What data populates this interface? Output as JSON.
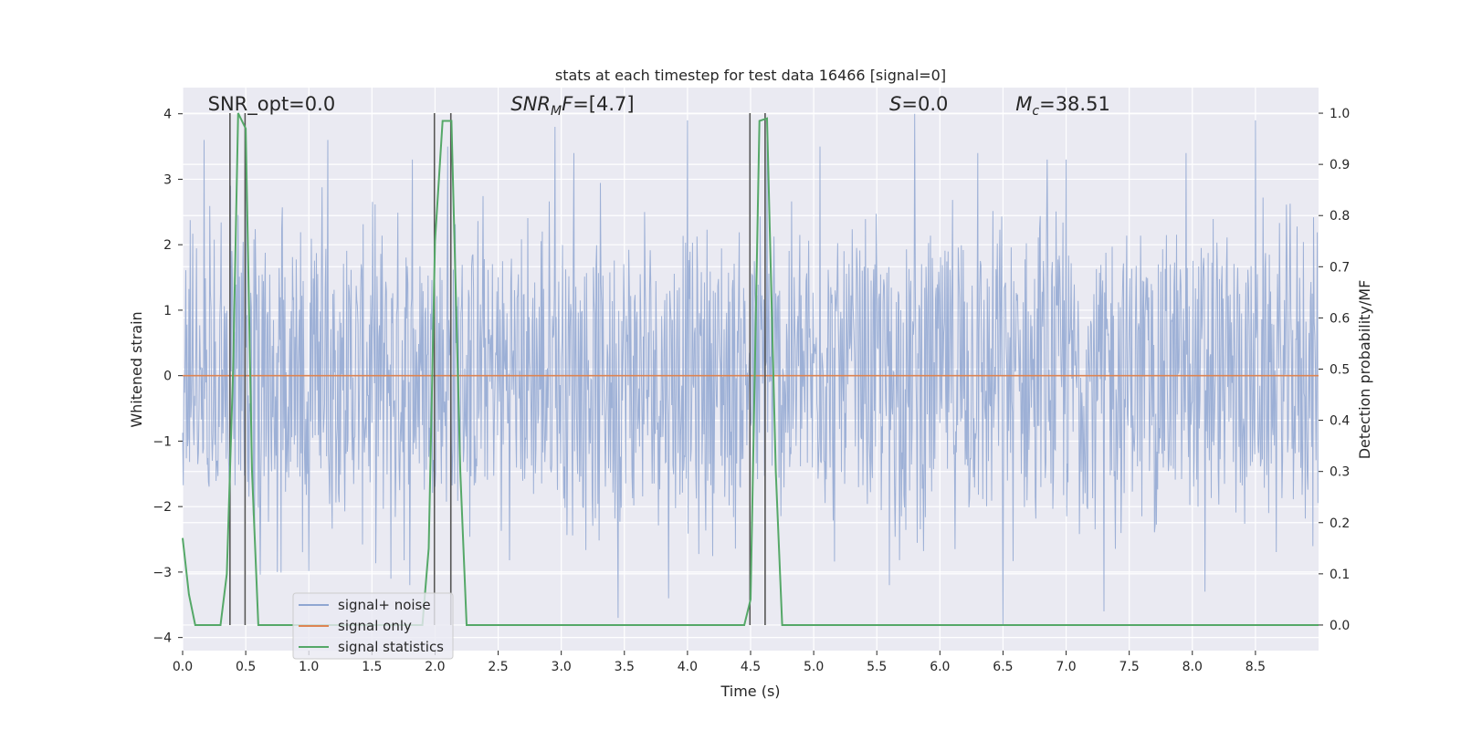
{
  "chart_data": {
    "type": "line",
    "title": "stats at each timestep for test data 16466 [signal=0]",
    "xlabel": "Time (s)",
    "ylabel": "Whitened strain",
    "y2label": "Detection probability/MF",
    "xlim": [
      0.0,
      9.0
    ],
    "ylim": [
      -4.2,
      4.4
    ],
    "y2lim": [
      -0.05,
      1.05
    ],
    "xticks": [
      0.0,
      0.5,
      1.0,
      1.5,
      2.0,
      2.5,
      3.0,
      3.5,
      4.0,
      4.5,
      5.0,
      5.5,
      6.0,
      6.5,
      7.0,
      7.5,
      8.0,
      8.5
    ],
    "yticks": [
      -4,
      -3,
      -2,
      -1,
      0,
      1,
      2,
      3,
      4
    ],
    "y2ticks": [
      0.0,
      0.1,
      0.2,
      0.3,
      0.4,
      0.5,
      0.6,
      0.7,
      0.8,
      0.9,
      1.0
    ],
    "grid": true,
    "legend_position": "lower-left",
    "annotations": [
      {
        "text": "SNR_opt=0.0",
        "x": 0.2,
        "y": 4.05
      },
      {
        "text": "SNR_MF=[4.7]",
        "x": 2.6,
        "y": 4.05
      },
      {
        "text": "S=0.0",
        "x": 5.6,
        "y": 4.05
      },
      {
        "text": "M_c=38.51",
        "x": 6.6,
        "y": 4.05
      }
    ],
    "series": [
      {
        "name": "signal+ noise",
        "axis": "left",
        "color": "#8fa6d1",
        "description": "dense whitened noise, amplitude roughly within -3.8 to 4.0",
        "peaks": [
          [
            0.17,
            3.6
          ],
          [
            0.38,
            2.9
          ],
          [
            0.5,
            3.1
          ],
          [
            1.15,
            3.6
          ],
          [
            1.82,
            3.3
          ],
          [
            2.1,
            3.5
          ],
          [
            2.95,
            3.8
          ],
          [
            4.0,
            3.9
          ],
          [
            4.63,
            3.6
          ],
          [
            5.05,
            3.5
          ],
          [
            5.8,
            4.0
          ],
          [
            6.3,
            3.4
          ],
          [
            7.0,
            3.3
          ],
          [
            7.3,
            3.8
          ],
          [
            7.95,
            3.4
          ],
          [
            8.5,
            3.9
          ],
          [
            3.1,
            3.4
          ],
          [
            6.85,
            3.3
          ]
        ],
        "troughs": [
          [
            1.65,
            -3.1
          ],
          [
            1.8,
            -3.2
          ],
          [
            3.45,
            -3.7
          ],
          [
            3.85,
            -3.4
          ],
          [
            6.5,
            -3.8
          ],
          [
            7.3,
            -3.6
          ],
          [
            8.1,
            -3.3
          ],
          [
            0.75,
            -3.0
          ],
          [
            5.6,
            -3.2
          ]
        ]
      },
      {
        "name": "signal only",
        "axis": "left",
        "color": "#dd8452",
        "x": [
          0.0,
          9.0
        ],
        "y": [
          0.0,
          0.0
        ]
      },
      {
        "name": "signal statistics",
        "axis": "right",
        "color": "#55a868",
        "x": [
          0.0,
          0.05,
          0.1,
          0.3,
          0.35,
          0.4,
          0.44,
          0.5,
          0.55,
          0.6,
          0.9,
          1.9,
          1.95,
          2.0,
          2.06,
          2.13,
          2.2,
          2.25,
          4.45,
          4.5,
          4.57,
          4.63,
          4.7,
          4.75,
          9.0
        ],
        "y": [
          0.17,
          0.06,
          0.0,
          0.0,
          0.1,
          0.5,
          1.0,
          0.97,
          0.3,
          0.0,
          0.0,
          0.0,
          0.15,
          0.75,
          0.985,
          0.985,
          0.3,
          0.0,
          0.0,
          0.05,
          0.985,
          0.99,
          0.3,
          0.0,
          0.0
        ]
      }
    ],
    "vlines": [
      0.375,
      0.495,
      1.995,
      2.125,
      4.495,
      4.615
    ]
  }
}
